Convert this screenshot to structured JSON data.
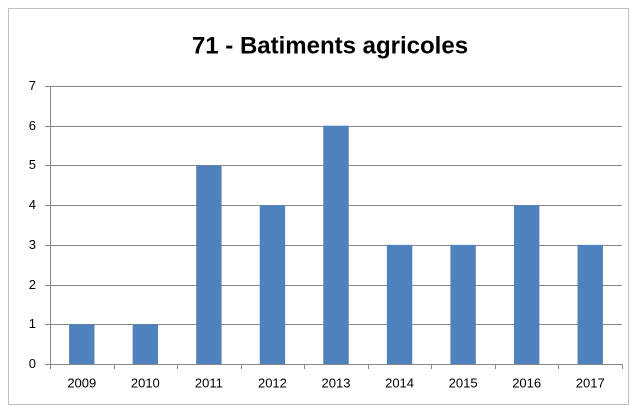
{
  "chart_data": {
    "type": "bar",
    "title": "71 - Batiments agricoles",
    "categories": [
      "2009",
      "2010",
      "2011",
      "2012",
      "2013",
      "2014",
      "2015",
      "2016",
      "2017"
    ],
    "values": [
      1,
      1,
      5,
      4,
      6,
      3,
      3,
      4,
      3
    ],
    "color": "#4f81bd",
    "ylim": [
      0,
      7
    ],
    "yticks": [
      0,
      1,
      2,
      3,
      4,
      5,
      6,
      7
    ],
    "grid": true
  }
}
